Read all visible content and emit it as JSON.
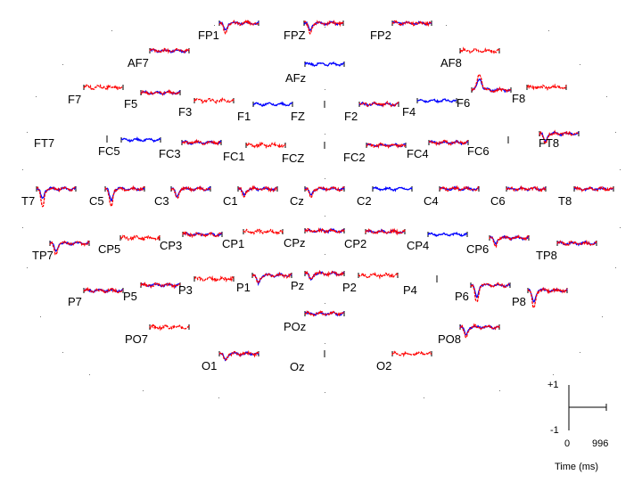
{
  "chart_data": {
    "type": "line",
    "layout": "scalp-topographic",
    "series": [
      {
        "color": "#0000ff"
      },
      {
        "color": "#ff0000"
      }
    ],
    "x_range_ms": [
      0,
      996
    ],
    "y_range": [
      -1,
      1
    ],
    "scale_marker": {
      "y_top": "+1",
      "y_bottom": "-1",
      "x_start": "0",
      "x_end": "996",
      "xlabel": "Time (ms)"
    },
    "channels": [
      {
        "name": "FP1",
        "shape": "dip",
        "blue": 0.35,
        "red": 0.5
      },
      {
        "name": "FPZ",
        "shape": "dip",
        "blue": 0.35,
        "red": 0.5
      },
      {
        "name": "FP2",
        "shape": "flat",
        "blue": 0.2,
        "red": 0.3
      },
      {
        "name": "AF7",
        "shape": "flat",
        "blue": 0.2,
        "red": 0.2
      },
      {
        "name": "AFz",
        "shape": "flat",
        "blue": 0.1,
        "red": 0
      },
      {
        "name": "AF8",
        "shape": "flat",
        "blue": 0,
        "red": 0.15
      },
      {
        "name": "F7",
        "shape": "flat",
        "blue": 0,
        "red": 0.15
      },
      {
        "name": "F5",
        "shape": "flat",
        "blue": 0.15,
        "red": 0.2
      },
      {
        "name": "F3",
        "shape": "flat",
        "blue": 0,
        "red": 0.15
      },
      {
        "name": "F1",
        "shape": "flat",
        "blue": 0.1,
        "red": 0
      },
      {
        "name": "FZ",
        "shape": "empty",
        "blue": 0,
        "red": 0
      },
      {
        "name": "F2",
        "shape": "flat",
        "blue": 0.25,
        "red": 0.3
      },
      {
        "name": "F4",
        "shape": "flat",
        "blue": 0.15,
        "red": 0
      },
      {
        "name": "F6",
        "shape": "peak",
        "blue": 0.6,
        "red": 0.8
      },
      {
        "name": "F8",
        "shape": "flat",
        "blue": 0,
        "red": 0.15
      },
      {
        "name": "FT7",
        "shape": "empty",
        "blue": 0,
        "red": 0
      },
      {
        "name": "FC5",
        "shape": "flat",
        "blue": 0.1,
        "red": 0
      },
      {
        "name": "FC3",
        "shape": "flat",
        "blue": 0.15,
        "red": 0.2
      },
      {
        "name": "FC1",
        "shape": "flat",
        "blue": 0,
        "red": 0.15
      },
      {
        "name": "FCZ",
        "shape": "empty",
        "blue": 0,
        "red": 0
      },
      {
        "name": "FC2",
        "shape": "flat",
        "blue": 0.2,
        "red": 0.25
      },
      {
        "name": "FC4",
        "shape": "flat",
        "blue": 0.2,
        "red": 0.25
      },
      {
        "name": "FC6",
        "shape": "empty",
        "blue": 0,
        "red": 0
      },
      {
        "name": "FT8",
        "shape": "dip",
        "blue": 0.4,
        "red": 0.5
      },
      {
        "name": "T7",
        "shape": "dip",
        "blue": 0.5,
        "red": 0.9
      },
      {
        "name": "C5",
        "shape": "dip",
        "blue": 0.6,
        "red": 0.9
      },
      {
        "name": "C3",
        "shape": "dip",
        "blue": 0.4,
        "red": 0.5
      },
      {
        "name": "C1",
        "shape": "dip",
        "blue": 0.3,
        "red": 0.4
      },
      {
        "name": "Cz",
        "shape": "dip",
        "blue": 0.3,
        "red": 0.4
      },
      {
        "name": "C2",
        "shape": "flat",
        "blue": 0.15,
        "red": 0
      },
      {
        "name": "C4",
        "shape": "flat",
        "blue": 0.15,
        "red": 0.2
      },
      {
        "name": "C6",
        "shape": "flat",
        "blue": 0.1,
        "red": 0.15
      },
      {
        "name": "T8",
        "shape": "flat",
        "blue": 0.2,
        "red": 0.2
      },
      {
        "name": "TP7",
        "shape": "dip",
        "blue": 0.4,
        "red": 0.6
      },
      {
        "name": "CP5",
        "shape": "flat",
        "blue": 0,
        "red": 0.15
      },
      {
        "name": "CP3",
        "shape": "flat",
        "blue": 0.1,
        "red": 0.15
      },
      {
        "name": "CP1",
        "shape": "flat",
        "blue": 0,
        "red": 0.15
      },
      {
        "name": "CPz",
        "shape": "flat",
        "blue": 0.1,
        "red": 0.15
      },
      {
        "name": "CP2",
        "shape": "flat",
        "blue": 0.1,
        "red": 0.15
      },
      {
        "name": "CP4",
        "shape": "flat",
        "blue": 0.15,
        "red": 0
      },
      {
        "name": "CP6",
        "shape": "dip",
        "blue": 0.3,
        "red": 0.4
      },
      {
        "name": "TP8",
        "shape": "flat",
        "blue": 0.2,
        "red": 0.25
      },
      {
        "name": "P7",
        "shape": "flat",
        "blue": 0.2,
        "red": 0.25
      },
      {
        "name": "P5",
        "shape": "flat",
        "blue": 0.15,
        "red": 0.2
      },
      {
        "name": "P3",
        "shape": "flat",
        "blue": 0,
        "red": 0.15
      },
      {
        "name": "P1",
        "shape": "dip",
        "blue": 0.4,
        "red": 0.4
      },
      {
        "name": "Pz",
        "shape": "dip",
        "blue": 0.3,
        "red": 0.3
      },
      {
        "name": "P2",
        "shape": "flat",
        "blue": 0,
        "red": 0.15
      },
      {
        "name": "P4",
        "shape": "empty",
        "blue": 0,
        "red": 0
      },
      {
        "name": "P6",
        "shape": "dip",
        "blue": 0.6,
        "red": 0.9
      },
      {
        "name": "P8",
        "shape": "dip",
        "blue": 0.6,
        "red": 0.9
      },
      {
        "name": "PO7",
        "shape": "flat",
        "blue": 0,
        "red": 0.15
      },
      {
        "name": "POz",
        "shape": "flat",
        "blue": 0.15,
        "red": 0.2
      },
      {
        "name": "PO8",
        "shape": "dip",
        "blue": 0.4,
        "red": 0.5
      },
      {
        "name": "O1",
        "shape": "dip",
        "blue": 0.3,
        "red": 0.3
      },
      {
        "name": "Oz",
        "shape": "empty",
        "blue": 0,
        "red": 0
      },
      {
        "name": "O2",
        "shape": "flat",
        "blue": 0,
        "red": 0.15
      }
    ]
  }
}
